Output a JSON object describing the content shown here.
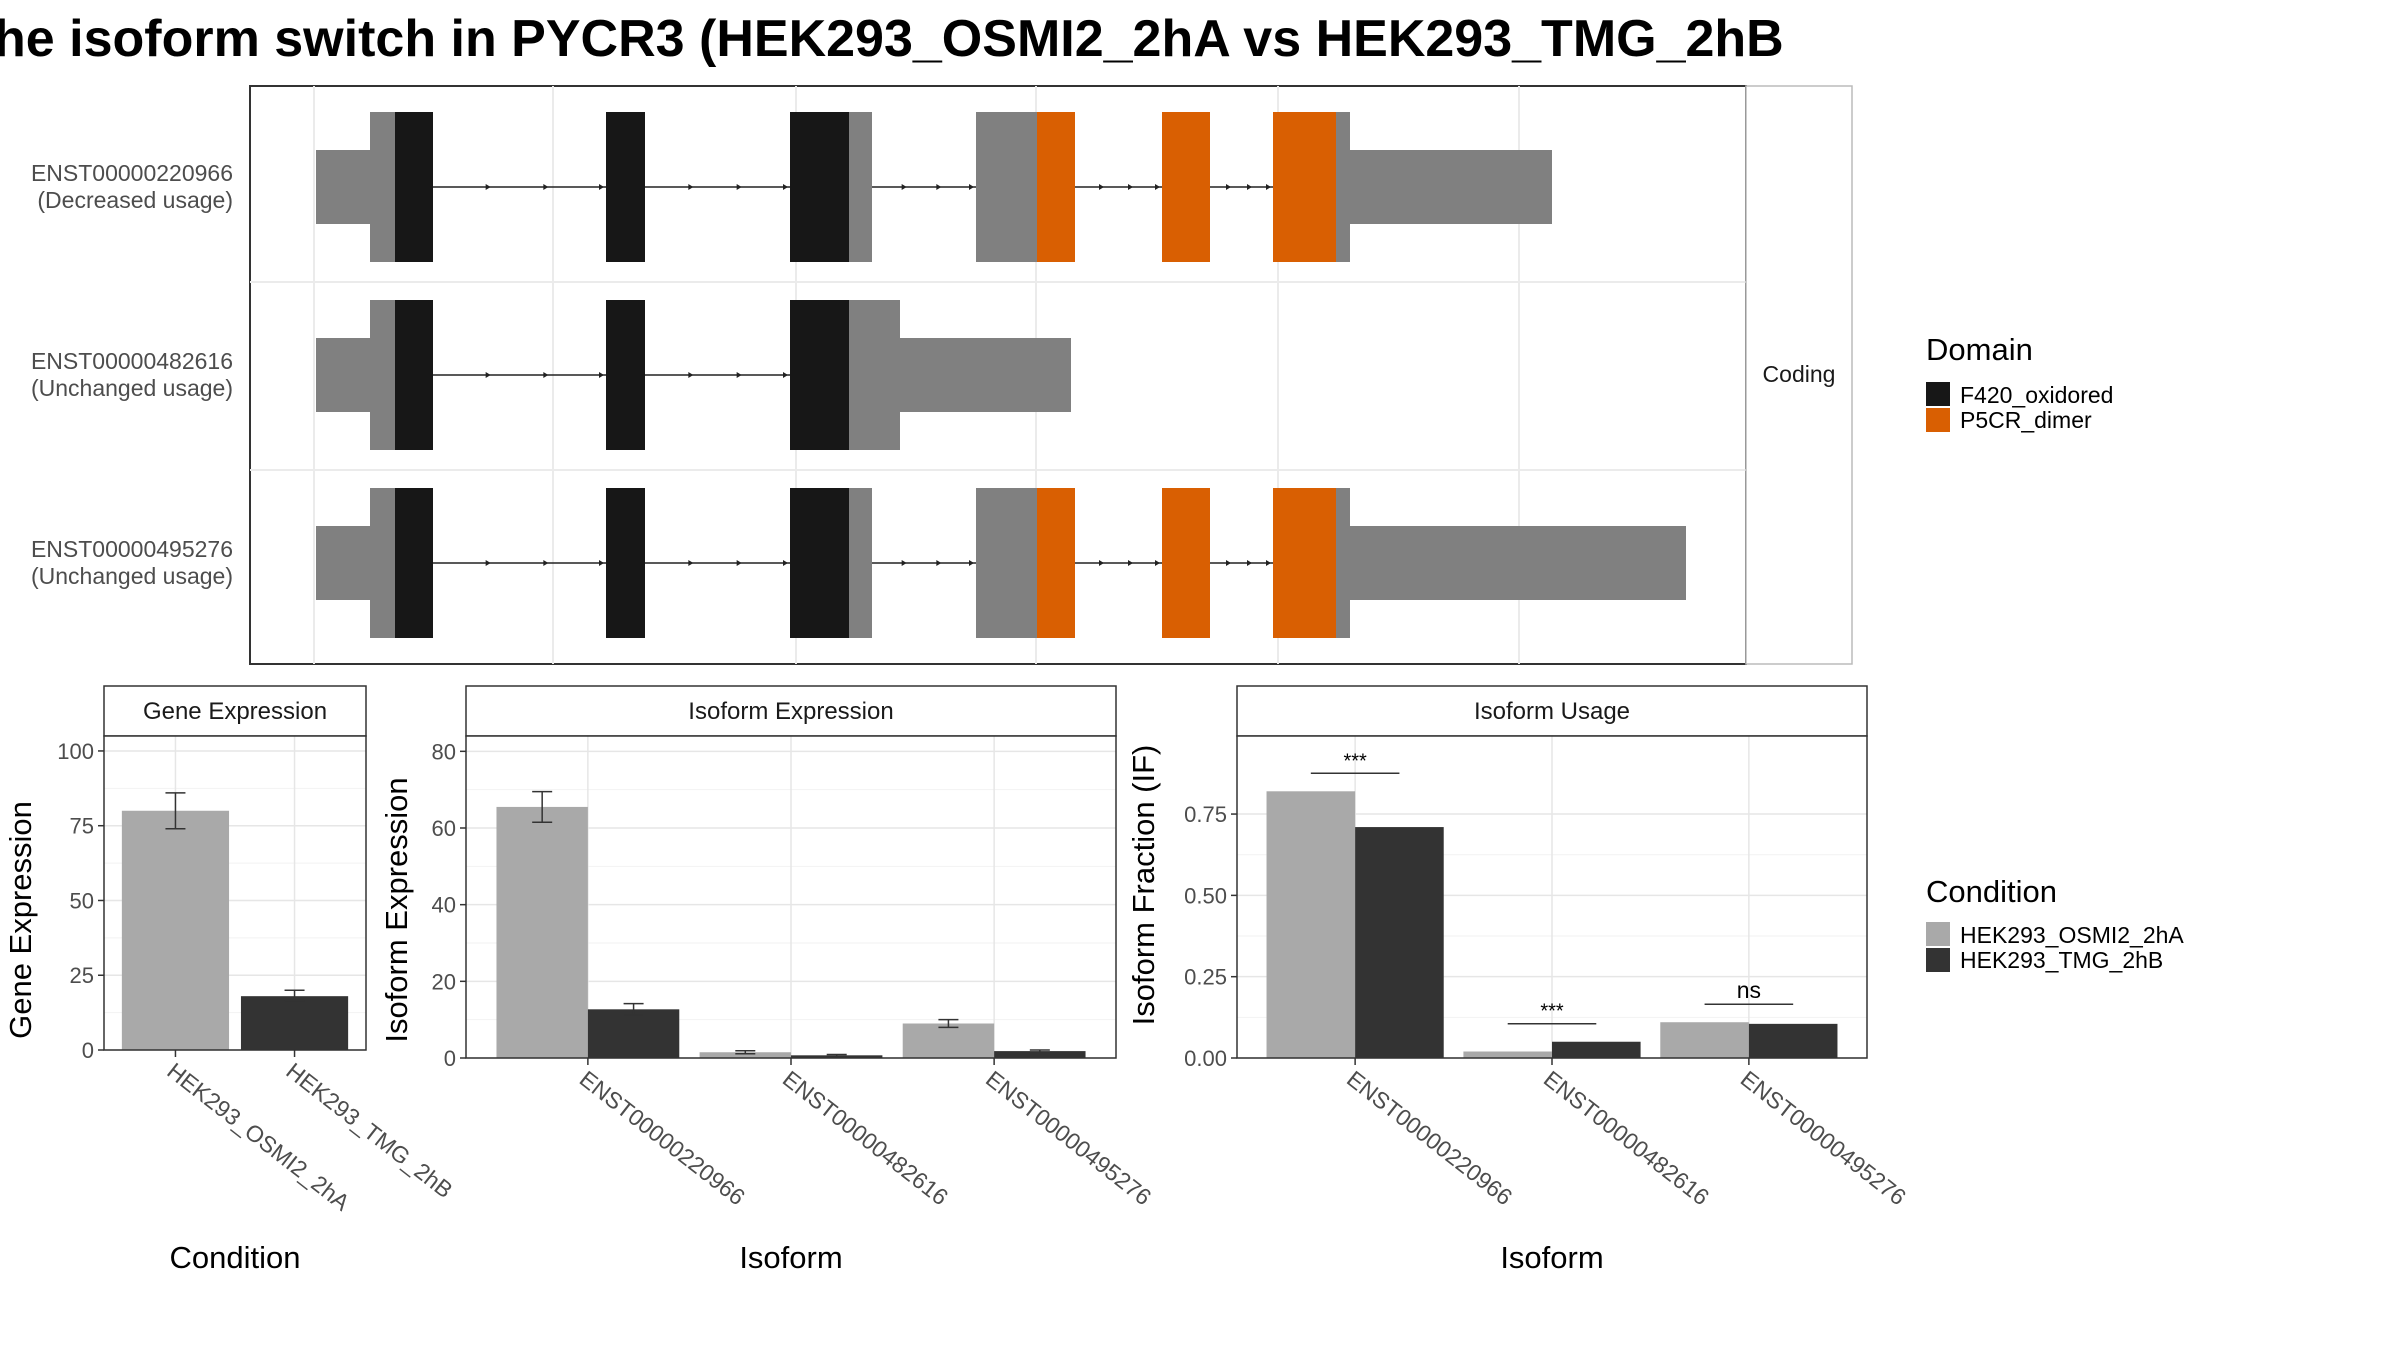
{
  "title": "he isoform switch in PYCR3 (HEK293_OSMI2_2hA vs HEK293_TMG_2hB",
  "colors": {
    "utr": "#808080",
    "F420_oxidored": "#171717",
    "P5CR_dimer": "#d95f02",
    "cond_a": "#a9a9a9",
    "cond_b": "#333333"
  },
  "structure": {
    "facet_label": "Coding",
    "isoforms": [
      {
        "id": "ENST00000220966",
        "usage": "(Decreased usage)"
      },
      {
        "id": "ENST00000482616",
        "usage": "(Unchanged usage)"
      },
      {
        "id": "ENST00000495276",
        "usage": "(Unchanged usage)"
      }
    ],
    "domain_legend": {
      "title": "Domain",
      "items": [
        {
          "name": "F420_oxidored",
          "color": "#171717"
        },
        {
          "name": "P5CR_dimer",
          "color": "#d95f02"
        }
      ]
    }
  },
  "condition_legend": {
    "title": "Condition",
    "items": [
      {
        "name": "HEK293_OSMI2_2hA",
        "color": "#a9a9a9"
      },
      {
        "name": "HEK293_TMG_2hB",
        "color": "#333333"
      }
    ]
  },
  "chart_data": [
    {
      "type": "bar",
      "panel": "Gene Expression",
      "categories": [
        "HEK293_OSMI2_2hA",
        "HEK293_TMG_2hB"
      ],
      "values": [
        80,
        18
      ],
      "err_low": [
        74,
        16.5
      ],
      "err_high": [
        86,
        20
      ],
      "xlabel": "Condition",
      "ylabel": "Gene Expression",
      "ylim": [
        0,
        105
      ],
      "yticks": [
        0,
        25,
        50,
        75,
        100
      ]
    },
    {
      "type": "bar",
      "panel": "Isoform Expression",
      "categories": [
        "ENST00000220966",
        "ENST00000482616",
        "ENST00000495276"
      ],
      "series": [
        {
          "name": "HEK293_OSMI2_2hA",
          "values": [
            65.5,
            1.5,
            9
          ],
          "err_low": [
            61.5,
            1.1,
            8
          ],
          "err_high": [
            69.5,
            1.9,
            10
          ]
        },
        {
          "name": "HEK293_TMG_2hB",
          "values": [
            12.7,
            0.7,
            1.8
          ],
          "err_low": [
            11.2,
            0.5,
            1.5
          ],
          "err_high": [
            14.2,
            0.9,
            2.1
          ]
        }
      ],
      "xlabel": "Isoform",
      "ylabel": "Isoform Expression",
      "ylim": [
        0,
        84
      ],
      "yticks": [
        0,
        20,
        40,
        60,
        80
      ]
    },
    {
      "type": "bar",
      "panel": "Isoform Usage",
      "categories": [
        "ENST00000220966",
        "ENST00000482616",
        "ENST00000495276"
      ],
      "series": [
        {
          "name": "HEK293_OSMI2_2hA",
          "values": [
            0.82,
            0.02,
            0.11
          ]
        },
        {
          "name": "HEK293_TMG_2hB",
          "values": [
            0.71,
            0.05,
            0.105
          ]
        }
      ],
      "significance": [
        "***",
        "***",
        "ns"
      ],
      "xlabel": "Isoform",
      "ylabel": "Isoform Fraction (IF)",
      "ylim": [
        0,
        0.99
      ],
      "yticks": [
        "0.00",
        "0.25",
        "0.50",
        "0.75"
      ]
    }
  ]
}
